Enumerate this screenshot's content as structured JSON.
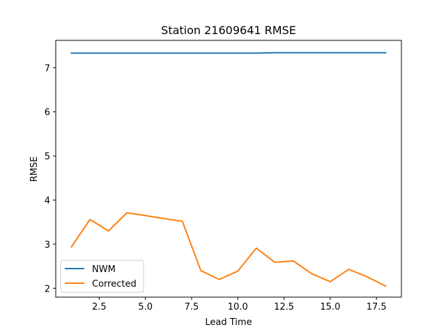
{
  "chart_data": {
    "type": "line",
    "title": "Station 21609641 RMSE",
    "xlabel": "Lead Time",
    "ylabel": "RMSE",
    "xlim": [
      0.15,
      18.85
    ],
    "ylim": [
      1.8,
      7.62
    ],
    "xticks": [
      2.5,
      5.0,
      7.5,
      10.0,
      12.5,
      15.0,
      17.5
    ],
    "xtick_labels": [
      "2.5",
      "5.0",
      "7.5",
      "10.0",
      "12.5",
      "15.0",
      "17.5"
    ],
    "yticks": [
      2,
      3,
      4,
      5,
      6,
      7
    ],
    "ytick_labels": [
      "2",
      "3",
      "4",
      "5",
      "6",
      "7"
    ],
    "grid": false,
    "legend_position": "lower-left",
    "series": [
      {
        "name": "NWM",
        "color": "#1f77b4",
        "x": [
          1,
          2,
          3,
          4,
          5,
          6,
          7,
          8,
          9,
          10,
          11,
          12,
          13,
          14,
          15,
          16,
          17,
          18
        ],
        "y": [
          7.33,
          7.33,
          7.33,
          7.33,
          7.33,
          7.33,
          7.33,
          7.33,
          7.33,
          7.33,
          7.33,
          7.34,
          7.34,
          7.34,
          7.34,
          7.34,
          7.34,
          7.34
        ]
      },
      {
        "name": "Corrected",
        "color": "#ff7f0e",
        "x": [
          1,
          2,
          3,
          4,
          5,
          6,
          7,
          8,
          9,
          10,
          11,
          12,
          13,
          14,
          15,
          16,
          17,
          18
        ],
        "y": [
          2.94,
          3.56,
          3.3,
          3.71,
          3.65,
          3.58,
          3.52,
          2.4,
          2.2,
          2.39,
          2.91,
          2.59,
          2.62,
          2.33,
          2.15,
          2.43,
          2.26,
          2.05
        ]
      }
    ]
  }
}
